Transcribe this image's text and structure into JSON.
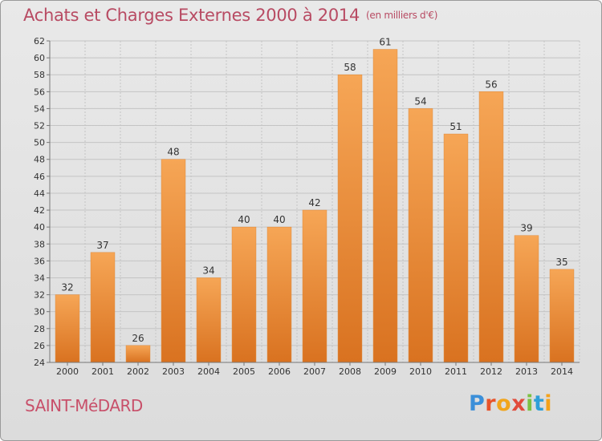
{
  "header": {
    "title": "Achats et Charges Externes 2000 à 2014",
    "unit": "(en milliers d'€)"
  },
  "footer": {
    "commune": "SAINT-MéDARD",
    "logo": {
      "letters": [
        "P",
        "r",
        "o",
        "x",
        "i",
        "t",
        "i"
      ],
      "colors": [
        "#3b8fd9",
        "#e8532a",
        "#f1a51c",
        "#e14b3b",
        "#7cc142",
        "#2e9fd8",
        "#f4a21a"
      ]
    }
  },
  "colors": {
    "bar_light": "#f6a656",
    "bar_dark": "#d97220",
    "title": "#b84b63",
    "grid": "#c4c4c4"
  },
  "chart_data": {
    "type": "bar",
    "categories": [
      "2000",
      "2001",
      "2002",
      "2003",
      "2004",
      "2005",
      "2006",
      "2007",
      "2008",
      "2009",
      "2010",
      "2011",
      "2012",
      "2013",
      "2014"
    ],
    "values": [
      32,
      37,
      26,
      48,
      34,
      40,
      40,
      42,
      58,
      61,
      54,
      51,
      56,
      39,
      35
    ],
    "ylim": [
      24,
      62
    ],
    "yticks": [
      24,
      26,
      28,
      30,
      32,
      34,
      36,
      38,
      40,
      42,
      44,
      46,
      48,
      50,
      52,
      54,
      56,
      58,
      60,
      62
    ],
    "grid": true,
    "data_labels": true
  }
}
